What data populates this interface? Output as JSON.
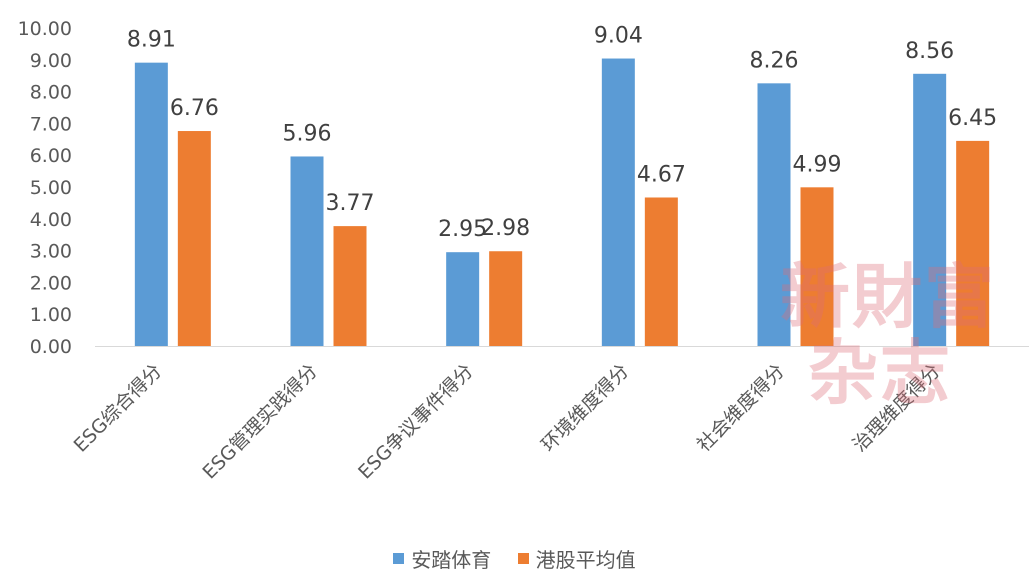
{
  "chart_data": {
    "type": "bar",
    "categories": [
      "ESG综合得分",
      "ESG管理实践得分",
      "ESG争议事件得分",
      "环境维度得分",
      "社会维度得分",
      "治理维度得分"
    ],
    "series": [
      {
        "name": "安踏体育",
        "values": [
          8.91,
          5.96,
          2.95,
          9.04,
          8.26,
          8.56
        ],
        "color": "#5B9BD5"
      },
      {
        "name": "港股平均值",
        "values": [
          6.76,
          3.77,
          2.98,
          4.67,
          4.99,
          6.45
        ],
        "color": "#ED7D31"
      }
    ],
    "y_ticks": [
      "0.00",
      "1.00",
      "2.00",
      "3.00",
      "4.00",
      "5.00",
      "6.00",
      "7.00",
      "8.00",
      "9.00",
      "10.00"
    ],
    "ylim": [
      0,
      10
    ],
    "grid": false,
    "legend": "bottom"
  },
  "watermark": {
    "line1": "新財富",
    "line2": "杂志"
  }
}
